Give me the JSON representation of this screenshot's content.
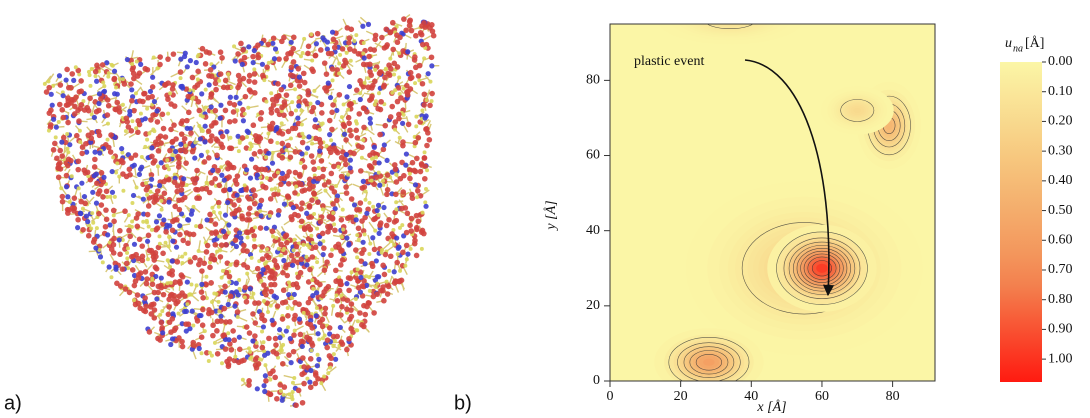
{
  "panels": [
    {
      "label": "a)"
    },
    {
      "label": "b)"
    }
  ],
  "chart_data": {
    "type": "contour",
    "x_label": "x [Å]",
    "y_label": "y [Å]",
    "xlim": [
      0,
      92
    ],
    "xticks": [
      0,
      20,
      40,
      60,
      80
    ],
    "ylim": [
      0,
      95
    ],
    "yticks": [
      0,
      20,
      40,
      60,
      80
    ],
    "annotation": "plastic event",
    "colorbar": {
      "symbol": "u",
      "subscript": "na",
      "unit": "[Å]",
      "lim": [
        0,
        1.077
      ],
      "ticks": [
        {
          "value": 0,
          "label": "0.00"
        },
        {
          "value": 0.1,
          "label": "0.10"
        },
        {
          "value": 0.2,
          "label": "0.20"
        },
        {
          "value": 0.3,
          "label": "0.30"
        },
        {
          "value": 0.4,
          "label": "0.40"
        },
        {
          "value": 0.5,
          "label": "0.50"
        },
        {
          "value": 0.6,
          "label": "0.60"
        },
        {
          "value": 0.7,
          "label": "0.70"
        },
        {
          "value": 0.8,
          "label": "0.80"
        },
        {
          "value": 0.9,
          "label": "0.90"
        },
        {
          "value": 1,
          "label": "1.00"
        }
      ],
      "colors": [
        "#fbf6a6",
        "#f6c27a",
        "#f28b55",
        "#ff1a10"
      ]
    },
    "peaks": [
      {
        "x": 55,
        "y": 30,
        "value": 0.25,
        "sx": 13,
        "sy": 9
      },
      {
        "x": 60,
        "y": 30,
        "value": 1.0,
        "sx": 6,
        "sy": 4.5
      },
      {
        "x": 28,
        "y": 5,
        "value": 0.6,
        "sx": 6,
        "sy": 3.5
      },
      {
        "x": 79,
        "y": 68,
        "value": 0.45,
        "sx": 3.5,
        "sy": 4.5
      },
      {
        "x": 70,
        "y": 72,
        "value": 0.2,
        "sx": 4,
        "sy": 2.5
      },
      {
        "x": 34,
        "y": 96,
        "value": 0.15,
        "sx": 8,
        "sy": 2.5
      }
    ]
  }
}
